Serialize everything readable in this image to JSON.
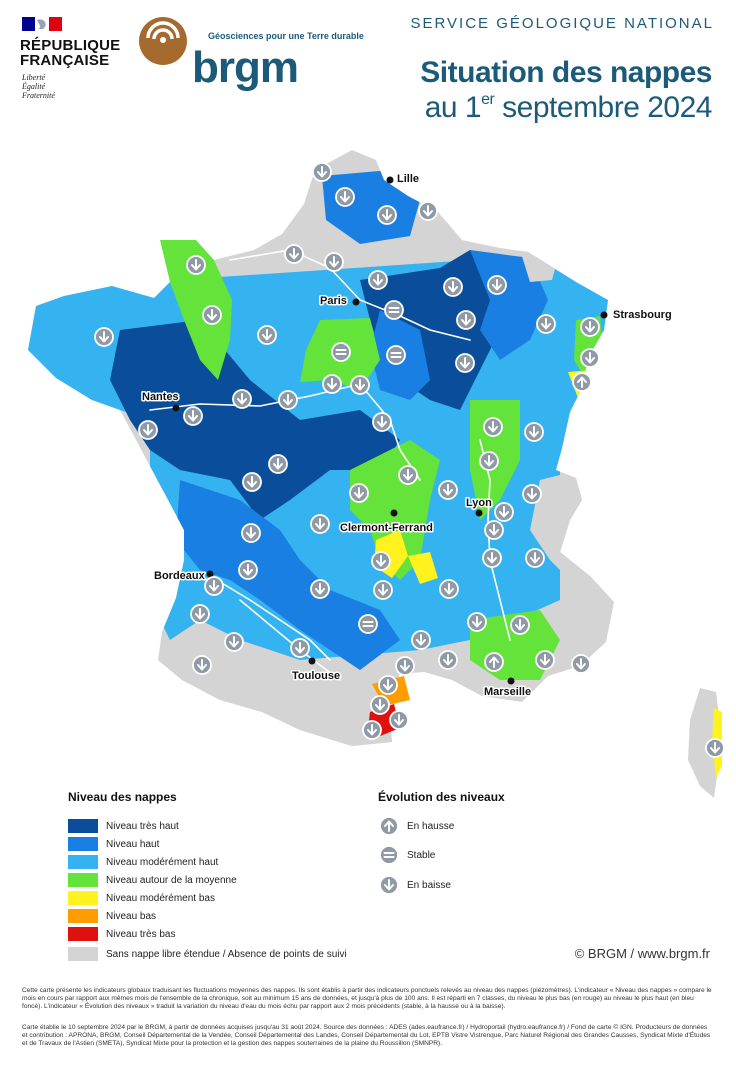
{
  "header": {
    "republic_name": [
      "RÉPUBLIQUE",
      "FRANÇAISE"
    ],
    "motto": [
      "Liberté",
      "Égalité",
      "Fraternité"
    ],
    "brgm_tagline": "Géosciences pour une Terre durable",
    "brgm_name": "brgm",
    "service": "SERVICE GÉOLOGIQUE NATIONAL",
    "title_line1": "Situation des nappes",
    "title_line2_prefix": "au 1",
    "title_line2_sup": "er",
    "title_line2_suffix": " septembre 2024"
  },
  "colors": {
    "tres_haut": "#0a4d9a",
    "haut": "#1a7fe3",
    "moderement_haut": "#34b3f0",
    "autour_moyenne": "#64e33a",
    "moderement_bas": "#fff21f",
    "bas": "#ff9d00",
    "tres_bas": "#e01010",
    "sans_nappe": "#d4d4d4",
    "brand": "#1c5a7a"
  },
  "map": {
    "cities": [
      {
        "name": "Lille"
      },
      {
        "name": "Paris"
      },
      {
        "name": "Strasbourg"
      },
      {
        "name": "Nantes"
      },
      {
        "name": "Lyon"
      },
      {
        "name": "Clermont-Ferrand"
      },
      {
        "name": "Bordeaux"
      },
      {
        "name": "Toulouse"
      },
      {
        "name": "Marseille"
      }
    ],
    "trend_symbols": {
      "up": "up-arrow-icon",
      "stable": "equals-icon",
      "down": "down-arrow-icon"
    },
    "trend_counts": {
      "up": 3,
      "stable": 3
    }
  },
  "legend_niveau": {
    "title": "Niveau des nappes",
    "items": [
      {
        "label": "Niveau très haut",
        "color_key": "tres_haut"
      },
      {
        "label": "Niveau haut",
        "color_key": "haut"
      },
      {
        "label": "Niveau modérément haut",
        "color_key": "moderement_haut"
      },
      {
        "label": "Niveau autour de la moyenne",
        "color_key": "autour_moyenne"
      },
      {
        "label": "Niveau modérément bas",
        "color_key": "moderement_bas"
      },
      {
        "label": "Niveau bas",
        "color_key": "bas"
      },
      {
        "label": "Niveau très bas",
        "color_key": "tres_bas"
      },
      {
        "label": "Sans nappe libre étendue / Absence de points de suivi",
        "color_key": "sans_nappe"
      }
    ]
  },
  "legend_evolution": {
    "title": "Évolution des niveaux",
    "items": [
      {
        "label": "En hausse",
        "icon": "up-arrow-icon"
      },
      {
        "label": "Stable",
        "icon": "equals-icon"
      },
      {
        "label": "En baisse",
        "icon": "down-arrow-icon"
      }
    ]
  },
  "copyright": "© BRGM / www.brgm.fr",
  "footnotes": {
    "paragraph1": "Cette carte présente les indicateurs globaux traduisant les fluctuations moyennes des nappes. Ils sont établis à partir des indicateurs ponctuels relevés au niveau des nappes (piézomètres). L'indicateur « Niveau des nappes » compare le mois en cours par rapport aux mêmes mois de l'ensemble de la chronique, soit au minimum 15 ans de données, et jusqu'à plus de 100 ans. Il est réparti en 7 classes, du niveau le plus bas (en rouge) au niveau le plus haut (en bleu foncé). L'indicateur « Évolution des niveaux » traduit la variation du niveau d'eau du mois échu par rapport aux 2 mois précédents (stable, à la hausse ou à la baisse).",
    "paragraph2": "Carte établie le 10 septembre 2024 par le BRGM, à partir de données acquises jusqu'au 31 août 2024. Source des données : ADES (ades.eaufrance.fr) / Hydroportail (hydro.eaufrance.fr) / Fond de carte © IGN. Producteurs de données et contribution : APRONA, BRGM, Conseil Départemental de la Vendée, Conseil Départemental des Landes, Conseil Départemental du Lot, EPTB Vistre Vistrenque, Parc Naturel Régional des Grandes Causses, Syndicat Mixte d'Études et de Travaux de l'Astien (SMETA), Syndicat Mixte pour la protection et la gestion des nappes souterraines de la plaine du Roussillon (SMNPR)."
  }
}
